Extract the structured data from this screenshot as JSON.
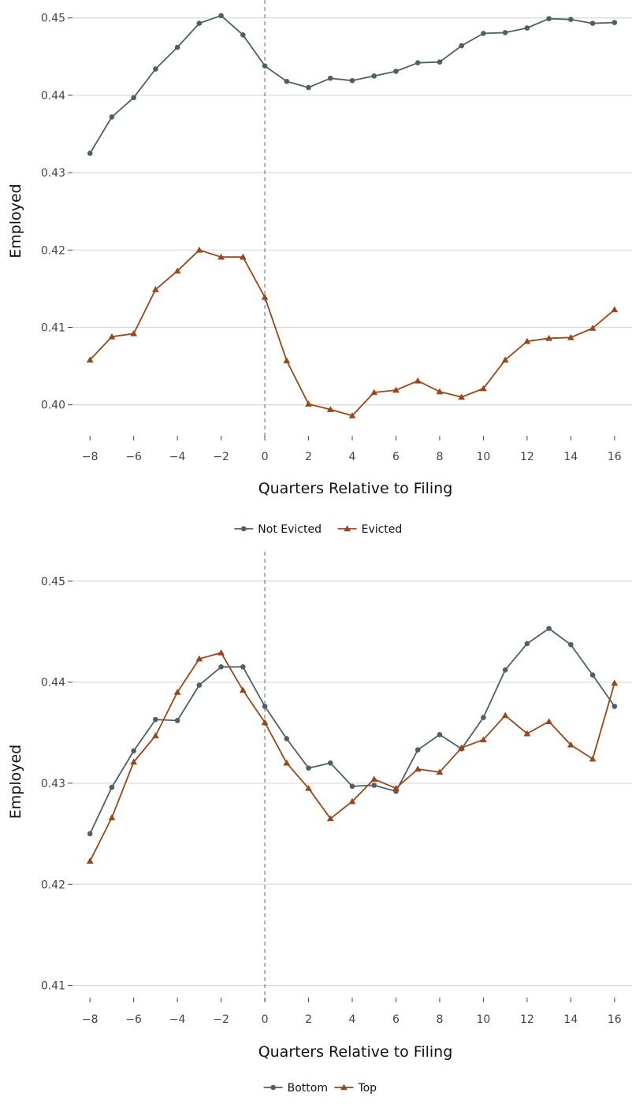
{
  "colors": {
    "first_series": "#4f6064",
    "second_series": "#97471b"
  },
  "chart_data": [
    {
      "type": "line",
      "xlabel": "Quarters Relative to Filing",
      "ylabel": "Employed",
      "ylim": [
        0.396,
        0.4515
      ],
      "xlim": [
        -8.8,
        16.8
      ],
      "y_ticks": [
        0.4,
        0.41,
        0.42,
        0.43,
        0.44,
        0.45
      ],
      "y_tick_labels": [
        "0.40",
        "0.41",
        "0.42",
        "0.43",
        "0.44",
        "0.45"
      ],
      "x_ticks": [
        -8,
        -6,
        -4,
        -2,
        0,
        2,
        4,
        6,
        8,
        10,
        12,
        14,
        16
      ],
      "x_tick_labels": [
        "−8",
        "−6",
        "−4",
        "−2",
        "0",
        "2",
        "4",
        "6",
        "8",
        "10",
        "12",
        "14",
        "16"
      ],
      "reference_line_x": 0,
      "grid": "horizontal",
      "legend_position": "bottom",
      "x": [
        -8,
        -7,
        -6,
        -5,
        -4,
        -3,
        -2,
        -1,
        0,
        1,
        2,
        3,
        4,
        5,
        6,
        7,
        8,
        9,
        10,
        11,
        12,
        13,
        14,
        15,
        16
      ],
      "series": [
        {
          "name": "Not Evicted",
          "marker": "circle",
          "values": [
            0.4325,
            0.4372,
            0.4397,
            0.4434,
            0.4462,
            0.4493,
            0.4503,
            0.4478,
            0.4438,
            0.4418,
            0.441,
            0.4422,
            0.4419,
            0.4425,
            0.4431,
            0.4442,
            0.4443,
            0.4464,
            0.448,
            0.4481,
            0.4487,
            0.4499,
            0.4498,
            0.4493,
            0.4494
          ]
        },
        {
          "name": "Evicted",
          "marker": "triangle",
          "values": [
            0.4058,
            0.4088,
            0.4092,
            0.4149,
            0.4173,
            0.42,
            0.4191,
            0.4191,
            0.4139,
            0.4057,
            0.4001,
            0.3994,
            0.3986,
            0.4016,
            0.4019,
            0.4031,
            0.4017,
            0.401,
            0.4021,
            0.4058,
            0.4082,
            0.4086,
            0.4087,
            0.4099,
            0.4123
          ]
        }
      ]
    },
    {
      "type": "line",
      "xlabel": "Quarters Relative to Filing",
      "ylabel": "Employed",
      "ylim": [
        0.4088,
        0.4515
      ],
      "xlim": [
        -8.8,
        16.8
      ],
      "y_ticks": [
        0.41,
        0.42,
        0.43,
        0.44,
        0.45
      ],
      "y_tick_labels": [
        "0.41",
        "0.42",
        "0.43",
        "0.44",
        "0.45"
      ],
      "x_ticks": [
        -8,
        -6,
        -4,
        -2,
        0,
        2,
        4,
        6,
        8,
        10,
        12,
        14,
        16
      ],
      "x_tick_labels": [
        "−8",
        "−6",
        "−4",
        "−2",
        "0",
        "2",
        "4",
        "6",
        "8",
        "10",
        "12",
        "14",
        "16"
      ],
      "reference_line_x": 0,
      "grid": "horizontal",
      "legend_position": "bottom",
      "x": [
        -8,
        -7,
        -6,
        -5,
        -4,
        -3,
        -2,
        -1,
        0,
        1,
        2,
        3,
        4,
        5,
        6,
        7,
        8,
        9,
        10,
        11,
        12,
        13,
        14,
        15,
        16
      ],
      "series": [
        {
          "name": "Bottom",
          "marker": "circle",
          "values": [
            0.425,
            0.4296,
            0.4332,
            0.4363,
            0.4362,
            0.4397,
            0.4415,
            0.4415,
            0.4376,
            0.4344,
            0.4315,
            0.432,
            0.4297,
            0.4298,
            0.4292,
            0.4333,
            0.4348,
            0.4334,
            0.4365,
            0.4412,
            0.4438,
            0.4453,
            0.4437,
            0.4407,
            0.4376
          ]
        },
        {
          "name": "Top",
          "marker": "triangle",
          "values": [
            0.4223,
            0.4266,
            0.4321,
            0.4347,
            0.439,
            0.4423,
            0.4429,
            0.4392,
            0.436,
            0.432,
            0.4295,
            0.4265,
            0.4282,
            0.4304,
            0.4295,
            0.4314,
            0.4311,
            0.4335,
            0.4343,
            0.4367,
            0.4349,
            0.4361,
            0.4338,
            0.4324,
            0.4399
          ]
        }
      ]
    }
  ]
}
